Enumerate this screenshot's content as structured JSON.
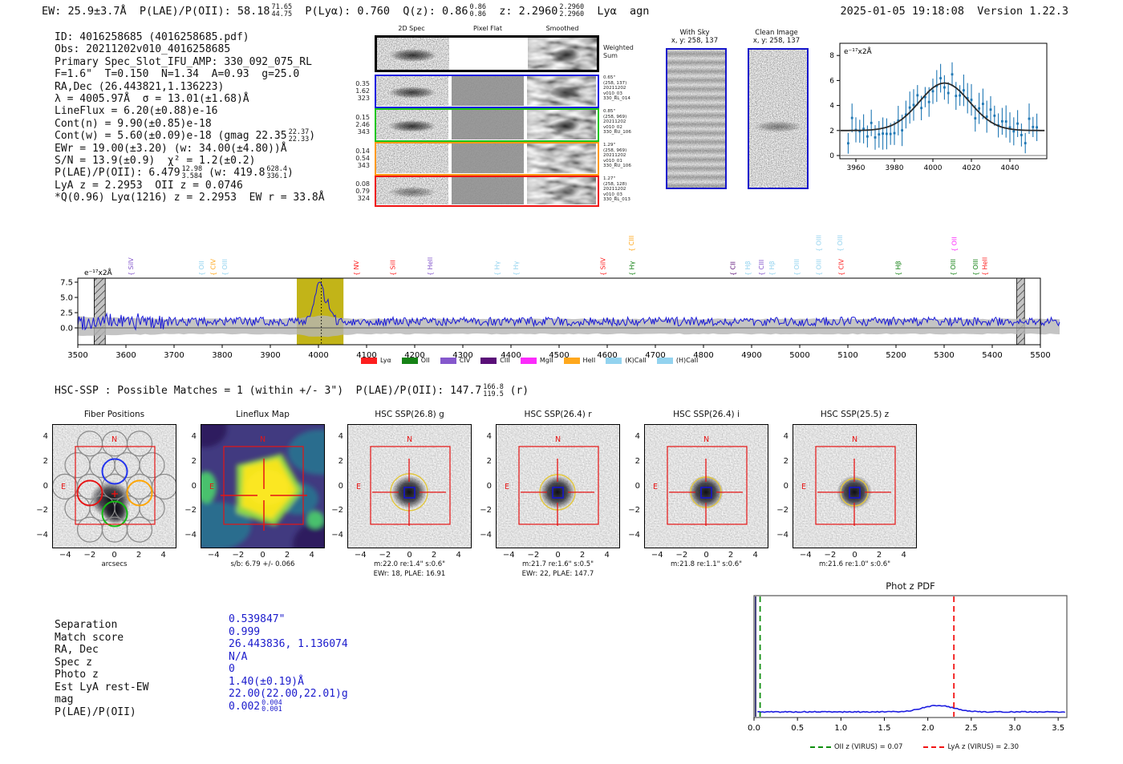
{
  "header": {
    "summary_segments": [
      {
        "t": "EW: 25.9±3.7Å  P(LAE)/P(OII): 58.18"
      },
      {
        "sup": "71.65",
        "sub": "44.75"
      },
      {
        "t": "  P(Lyα): 0.760  Q(z): 0.86"
      },
      {
        "sup": "0.86",
        "sub": "0.86"
      },
      {
        "t": "  z: 2.2960"
      },
      {
        "sup": "2.2960",
        "sub": "2.2960"
      },
      {
        "t": "  Lyα  agn"
      }
    ],
    "timestamp": "2025-01-05 19:18:08  Version 1.22.3"
  },
  "info": {
    "lines": [
      [
        {
          "t": "ID: 4016258685 (4016258685.pdf)"
        }
      ],
      [
        {
          "t": "Obs: 20211202v010_4016258685"
        }
      ],
      [
        {
          "t": "Primary Spec_Slot_IFU_AMP: 330_092_075_RL"
        }
      ],
      [
        {
          "t": "F=1.6\"  T=0.150  N=1.34  A=0.93  g=25.0"
        }
      ],
      [
        {
          "t": "RA,Dec (26.443821,1.136223)"
        }
      ],
      [
        {
          "t": "λ = 4005.97Å  σ = 13.01(±1.68)Å"
        }
      ],
      [
        {
          "t": "LineFlux = 6.20(±0.88)e-16"
        }
      ],
      [
        {
          "t": "Cont(n) = 9.90(±0.85)e-18"
        }
      ],
      [
        {
          "t": "Cont(w) = 5.60(±0.09)e-18 (gmag 22.35"
        },
        {
          "sup": "22.37",
          "sub": "22.33"
        },
        {
          "t": ")"
        }
      ],
      [
        {
          "t": "EWr = 19.00(±3.20) (w: 34.00(±4.80))Å"
        }
      ],
      [
        {
          "t": "S/N = 13.9(±0.9)  χ² = 1.2(±0.2)"
        }
      ],
      [
        {
          "t": "P(LAE)/P(OII): 6.479"
        },
        {
          "sup": "12.98",
          "sub": "3.584"
        },
        {
          "t": " (w: 419.8"
        },
        {
          "sup": "628.4",
          "sub": "336.1"
        },
        {
          "t": ")"
        }
      ],
      [
        {
          "t": "LyA z = 2.2953  OII z = 0.0746"
        }
      ],
      [
        {
          "t": "*Q(0.96) Lyα(1216) z = 2.2953  EW r = 33.8Å"
        }
      ]
    ]
  },
  "spec2d": {
    "col_headers": [
      "2D Spec",
      "Pixel Flat",
      "Smoothed"
    ],
    "rows": [
      {
        "border": "#000000",
        "left": [],
        "right": [
          "Weighted",
          "Sum"
        ],
        "flat": "white",
        "signal": 0.9
      },
      {
        "border": "#1515e0",
        "left": [
          "0.35",
          "1.62",
          "323"
        ],
        "right": [
          "0.65\"",
          "(258, 137)",
          "20211202",
          "v010_03",
          "330_RL_014"
        ],
        "flat": "gray",
        "signal": 0.85
      },
      {
        "border": "#17c517",
        "left": [
          "0.15",
          "2.46",
          "343"
        ],
        "right": [
          "0.85\"",
          "(258, 969)",
          "20211202",
          "v010_02",
          "330_RU_106"
        ],
        "flat": "gray",
        "signal": 0.9
      },
      {
        "border": "#ff9913",
        "left": [
          "0.14",
          "0.54",
          "343"
        ],
        "right": [
          "1.29\"",
          "(258, 969)",
          "20211202",
          "v010_01",
          "330_RU_106"
        ],
        "flat": "gray",
        "signal": 0.1
      },
      {
        "border": "#ee1111",
        "left": [
          "0.08",
          "0.79",
          "324"
        ],
        "right": [
          "1.27\"",
          "(258, 128)",
          "20211202",
          "v010_03",
          "330_RL_013"
        ],
        "flat": "gray",
        "signal": 0.55
      }
    ]
  },
  "sky_panels": [
    {
      "title": "With Sky",
      "coords": "x, y: 258, 137",
      "kind": "sky"
    },
    {
      "title": "Clean Image",
      "coords": "x, y: 258, 137",
      "kind": "clean"
    }
  ],
  "hsc_header_segments": [
    {
      "t": "HSC-SSP : Possible Matches = 1 (within +/- 3\")  P(LAE)/P(OII): 147.7"
    },
    {
      "sup": "166.8",
      "sub": "119.5"
    },
    {
      "t": " (r)"
    }
  ],
  "cutouts": {
    "axis_ticks": [
      -4,
      -2,
      0,
      2,
      4
    ],
    "compass": {
      "n": "N",
      "e": "E"
    },
    "panels": [
      {
        "title": "Fiber Positions",
        "caption": "arcsecs",
        "caption2": "",
        "kind": "fiber"
      },
      {
        "title": "Lineflux Map",
        "caption": "s/b: 6.79 +/- 0.066",
        "caption2": "",
        "kind": "lineflux"
      },
      {
        "title": "HSC SSP(26.8) g",
        "caption": "m:22.0 re:1.4\" s:0.6\"",
        "caption2": "EWr: 18, PLAE: 16.91",
        "kind": "image",
        "circle_r": 23
      },
      {
        "title": "HSC SSP(26.4) r",
        "caption": "m:21.7 re:1.6\" s:0.5\"",
        "caption2": "EWr: 22, PLAE: 147.7",
        "kind": "image",
        "circle_r": 22
      },
      {
        "title": "HSC SSP(26.4) i",
        "caption": "m:21.8 re:1.1\" s:0.6\"",
        "caption2": "",
        "kind": "image",
        "circle_r": 19
      },
      {
        "title": "HSC SSP(25.5) z",
        "caption": "m:21.6 re:1.0\" s:0.6\"",
        "caption2": "",
        "kind": "image",
        "circle_r": 17
      }
    ]
  },
  "match_table": {
    "rows": [
      {
        "label": "Separation",
        "value": [
          {
            "t": "0.539847\""
          }
        ]
      },
      {
        "label": "Match score",
        "value": [
          {
            "t": "0.999"
          }
        ]
      },
      {
        "label": "RA, Dec",
        "value": [
          {
            "t": "26.443836, 1.136074"
          }
        ]
      },
      {
        "label": "Spec z",
        "value": [
          {
            "t": "N/A"
          }
        ]
      },
      {
        "label": "Photo z",
        "value": [
          {
            "t": "0"
          }
        ]
      },
      {
        "label": "Est LyA rest-EW",
        "value": [
          {
            "t": "1.40(±0.19)Å"
          }
        ]
      },
      {
        "label": "mag",
        "value": [
          {
            "t": "22.00(22.00,22.01)g"
          }
        ]
      },
      {
        "label": "P(LAE)/P(OII)",
        "value": [
          {
            "t": "0.002"
          },
          {
            "sup": "0.004",
            "sub": "0.001"
          }
        ]
      }
    ],
    "value_color": "#1a1acc"
  },
  "chart_data": [
    {
      "id": "line_fit_plot",
      "type": "scatter",
      "ylabel": "e⁻¹⁷x2Å",
      "x_ticks": [
        3960,
        3980,
        4000,
        4020,
        4040
      ],
      "y_ticks": [
        0,
        2,
        4,
        6,
        8
      ],
      "xlim": [
        3952,
        4059
      ],
      "ylim": [
        -0.5,
        8.8
      ],
      "fit": {
        "baseline": 2.0,
        "amplitude": 3.8,
        "center": 4006,
        "sigma": 13
      },
      "point_color": "#1f77b4",
      "fit_color": "#2b2b2b",
      "note": "blue errorbar points every ~2Å scattered about the gaussian fit"
    },
    {
      "id": "full_spectrum",
      "type": "line",
      "ylabel": "e⁻¹⁷x2Å",
      "xlim": [
        3470,
        5540
      ],
      "ylim": [
        -2.8,
        8.2
      ],
      "x_tick_min": 3500,
      "x_tick_max": 5500,
      "x_tick_step": 100,
      "y_ticks": [
        0.0,
        2.5,
        5.0,
        7.5
      ],
      "line_color": "#1717d8",
      "emission_line": {
        "wavelength": 4005.97,
        "peak_flux": 7.5,
        "sigma": 13
      },
      "baseline_mean": 1.05,
      "highlight_band": [
        3955,
        4052
      ],
      "highlight_color": "#c2b418",
      "masked_bands": [
        [
          3534,
          3557
        ],
        [
          5451,
          5467
        ]
      ],
      "dashed_line_at": 4005.97,
      "legend": [
        {
          "label": "Lyα",
          "color": "#fd1f1f"
        },
        {
          "label": "OII",
          "color": "#168216"
        },
        {
          "label": "CIV",
          "color": "#8558cc"
        },
        {
          "label": "CIII",
          "color": "#5a0f78"
        },
        {
          "label": "MgII",
          "color": "#fb2cfb"
        },
        {
          "label": "HeII",
          "color": "#ffa81d"
        },
        {
          "label": "(K)CaII",
          "color": "#93d3ef"
        },
        {
          "label": "(H)CaII",
          "color": "#93d3ef"
        }
      ],
      "line_labels": [
        {
          "wave": 3615,
          "label": "SiIV",
          "color": "#8558cc",
          "row": 0
        },
        {
          "wave": 3762,
          "label": "OII",
          "color": "#93d3ef",
          "row": 0
        },
        {
          "wave": 3786,
          "label": "CIV",
          "color": "#ffa81d",
          "row": 0
        },
        {
          "wave": 3810,
          "label": "OIII",
          "color": "#93d3ef",
          "row": 0
        },
        {
          "wave": 4083,
          "label": "NV",
          "color": "#fd1f1f",
          "row": 0
        },
        {
          "wave": 4159,
          "label": "SiII",
          "color": "#fd1f1f",
          "row": 0
        },
        {
          "wave": 4237,
          "label": "HeII",
          "color": "#8558cc",
          "row": 0
        },
        {
          "wave": 4376,
          "label": "Hγ",
          "color": "#93d3ef",
          "row": 0
        },
        {
          "wave": 4415,
          "label": "Hγ",
          "color": "#93d3ef",
          "row": 0
        },
        {
          "wave": 4596,
          "label": "SiIV",
          "color": "#fd1f1f",
          "row": 0
        },
        {
          "wave": 4656,
          "label": "Hγ",
          "color": "#168216",
          "row": 0
        },
        {
          "wave": 4655,
          "label": "CIII",
          "color": "#ffa81d",
          "row": 1
        },
        {
          "wave": 4866,
          "label": "CII",
          "color": "#5a0f78",
          "row": 0
        },
        {
          "wave": 4897,
          "label": "Hβ",
          "color": "#93d3ef",
          "row": 0
        },
        {
          "wave": 4925,
          "label": "CIII",
          "color": "#8558cc",
          "row": 0
        },
        {
          "wave": 4947,
          "label": "Hβ",
          "color": "#93d3ef",
          "row": 0
        },
        {
          "wave": 4998,
          "label": "OIII",
          "color": "#93d3ef",
          "row": 0
        },
        {
          "wave": 5044,
          "label": "OIII",
          "color": "#93d3ef",
          "row": 0
        },
        {
          "wave": 5044,
          "label": "OIII",
          "color": "#93d3ef",
          "row": 1
        },
        {
          "wave": 5088,
          "label": "OIII",
          "color": "#93d3ef",
          "row": 1
        },
        {
          "wave": 5091,
          "label": "CIV",
          "color": "#fd1f1f",
          "row": 0
        },
        {
          "wave": 5209,
          "label": "Hβ",
          "color": "#168216",
          "row": 0
        },
        {
          "wave": 5323,
          "label": "OIII",
          "color": "#168216",
          "row": 0
        },
        {
          "wave": 5326,
          "label": "OII",
          "color": "#fb2cfb",
          "row": 1
        },
        {
          "wave": 5370,
          "label": "OIII",
          "color": "#168216",
          "row": 0
        },
        {
          "wave": 5389,
          "label": "HeII",
          "color": "#fd1f1f",
          "row": 0
        }
      ]
    },
    {
      "id": "photz_pdf",
      "type": "line",
      "title": "Phot z PDF",
      "x_ticks": [
        0.0,
        0.5,
        1.0,
        1.5,
        2.0,
        2.5,
        3.0,
        3.5
      ],
      "xlim": [
        0,
        3.6
      ],
      "pdf_color": "#1c1ce0",
      "pdf_bump": {
        "center": 2.12,
        "sigma": 0.18,
        "rel_height": 0.05
      },
      "spike_at_zero": true,
      "vlines": [
        {
          "z": 0.07,
          "color": "#0f8f0f",
          "style": "dashed",
          "label": "OII z (VIRUS) = 0.07"
        },
        {
          "z": 2.3,
          "color": "#f21414",
          "style": "dashed",
          "label": "LyA z (VIRUS) = 2.30"
        }
      ]
    }
  ]
}
